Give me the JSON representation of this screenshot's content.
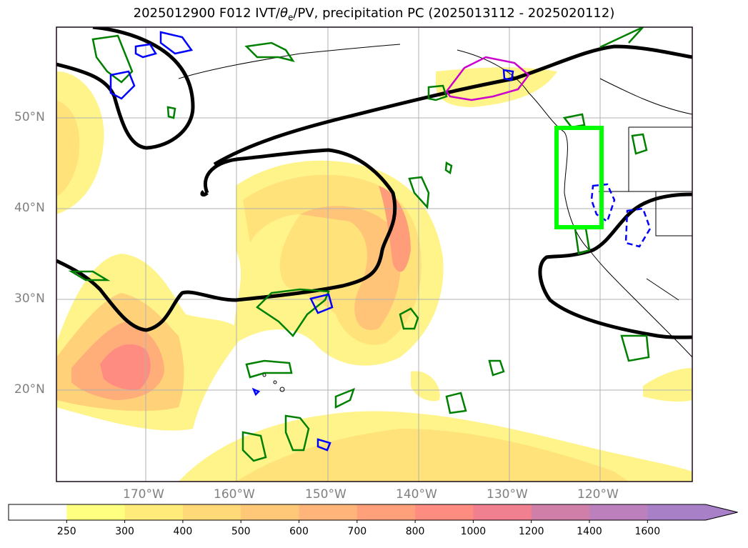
{
  "title": {
    "prefix": "2025012900 F012 IVT/",
    "theta": "θ",
    "theta_sub": "e",
    "suffix": "/PV, precipitation PC (2025013112 - 2025020112)"
  },
  "map": {
    "lat_labels": [
      "50°N",
      "40°N",
      "30°N",
      "20°N"
    ],
    "lon_labels": [
      "170°W",
      "160°W",
      "150°W",
      "140°W",
      "130°W",
      "120°W"
    ],
    "box_color": "#00ff00",
    "ivt_contour_color": "#000000",
    "pv_color": "#008000",
    "theta_color": "#0000ff",
    "precip_color": "#cc00cc"
  },
  "colorbar": {
    "ticks": [
      "250",
      "300",
      "400",
      "500",
      "600",
      "700",
      "800",
      "1000",
      "1200",
      "1400",
      "1600"
    ],
    "colors": [
      "#ffffff",
      "#ffff80",
      "#ffeb7a",
      "#ffd878",
      "#ffc778",
      "#ffb57a",
      "#ffa07a",
      "#ff8c80",
      "#f08090",
      "#d080a8",
      "#bc80bc",
      "#a880c8"
    ]
  }
}
